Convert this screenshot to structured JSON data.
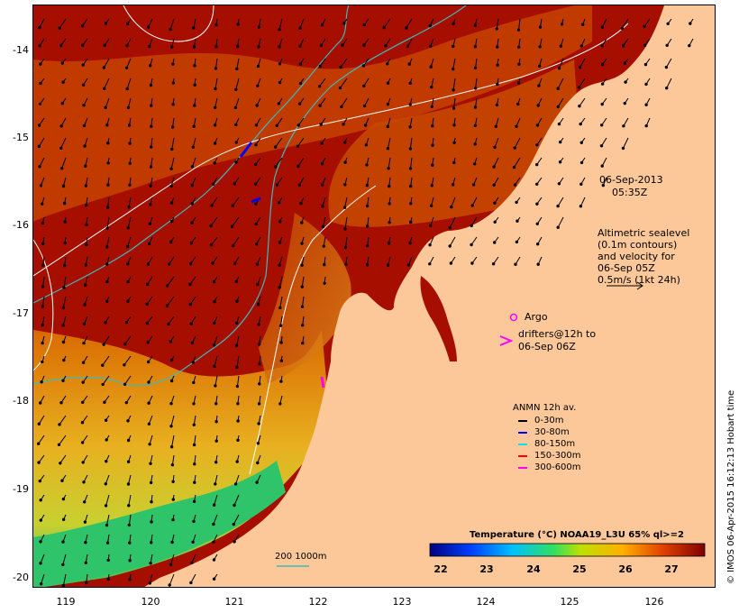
{
  "map": {
    "y_axis_labels": [
      "-14",
      "-15",
      "-16",
      "-17",
      "-18",
      "-19",
      "-20"
    ],
    "x_axis_labels": [
      "119",
      "120",
      "121",
      "122",
      "123",
      "124",
      "125",
      "126"
    ],
    "date_line": "06-Sep-2013",
    "time_line": "05:35Z",
    "altimetry_lines": [
      "Altimetric sealevel",
      "(0.1m contours)",
      "and velocity for",
      "06-Sep 05Z",
      "0.5m/s (1kt 24h)"
    ],
    "argo_label": "Argo",
    "drifters_lines": [
      "drifters@12h to",
      "06-Sep 06Z"
    ],
    "anmn_title": "ANMN 12h av.",
    "anmn_items": [
      {
        "label": "0-30m",
        "color": "#000000"
      },
      {
        "label": "30-80m",
        "color": "#0000ff"
      },
      {
        "label": "80-150m",
        "color": "#00e5e5"
      },
      {
        "label": "150-300m",
        "color": "#ff0000"
      },
      {
        "label": "300-600m",
        "color": "#ff00ff"
      }
    ],
    "colorbar_title": "Temperature (°C) NOAA19_L3U 65% ql>=2",
    "colorbar_ticks": [
      "22",
      "23",
      "24",
      "25",
      "26",
      "27"
    ],
    "scale_label": "200  1000m",
    "credit": "© IMOS 06-Apr-2015 16:12:13 Hobart time",
    "colors": {
      "land": "#fcc899",
      "warm_sea": "#a30c00",
      "mid_sea": "#cc4a00",
      "cool_sea": "#e0a010",
      "cold_sea": "#30d060",
      "contour_cyan": "#3fb9b9",
      "contour_white": "#ffffff"
    }
  }
}
